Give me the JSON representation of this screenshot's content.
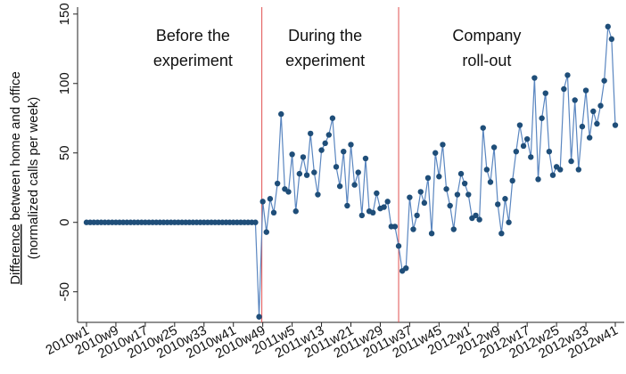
{
  "chart_data": {
    "type": "line",
    "y_label": {
      "underlined": "Difference",
      "rest": "between home and office",
      "line2": "(normalized calls per week)"
    },
    "annotations": [
      {
        "lines": [
          "Before the",
          "experiment"
        ],
        "index": 29
      },
      {
        "lines": [
          "During the",
          "experiment"
        ],
        "index": 65
      },
      {
        "lines": [
          "Company",
          "roll-out"
        ],
        "index": 109
      }
    ],
    "vlines": [
      47.75,
      85
    ],
    "vline_color": "#e05050",
    "categories": [
      "2010w1",
      null,
      null,
      null,
      null,
      null,
      null,
      null,
      "2010w9",
      null,
      null,
      null,
      null,
      null,
      null,
      null,
      "2010w17",
      null,
      null,
      null,
      null,
      null,
      null,
      null,
      "2010w25",
      null,
      null,
      null,
      null,
      null,
      null,
      null,
      "2010w33",
      null,
      null,
      null,
      null,
      null,
      null,
      null,
      "2010w41",
      null,
      null,
      null,
      null,
      null,
      null,
      null,
      "2010w49",
      null,
      null,
      null,
      null,
      null,
      null,
      null,
      "2011w5",
      null,
      null,
      null,
      null,
      null,
      null,
      null,
      "2011w13",
      null,
      null,
      null,
      null,
      null,
      null,
      null,
      "2011w21",
      null,
      null,
      null,
      null,
      null,
      null,
      null,
      "2011w29",
      null,
      null,
      null,
      null,
      null,
      null,
      null,
      "2011w37",
      null,
      null,
      null,
      null,
      null,
      null,
      null,
      "2011w45",
      null,
      null,
      null,
      null,
      null,
      null,
      null,
      "2012w1",
      null,
      null,
      null,
      null,
      null,
      null,
      null,
      "2012w9",
      null,
      null,
      null,
      null,
      null,
      null,
      null,
      "2012w17",
      null,
      null,
      null,
      null,
      null,
      null,
      null,
      "2012w25",
      null,
      null,
      null,
      null,
      null,
      null,
      null,
      "2012w33",
      null,
      null,
      null,
      null,
      null,
      null,
      null,
      "2012w41"
    ],
    "series": [
      {
        "color": "#5a86c0",
        "marker_color": "#1f4e79",
        "values": [
          0,
          0,
          0,
          0,
          0,
          0,
          0,
          0,
          0,
          0,
          0,
          0,
          0,
          0,
          0,
          0,
          0,
          0,
          0,
          0,
          0,
          0,
          0,
          0,
          0,
          0,
          0,
          0,
          0,
          0,
          0,
          0,
          0,
          0,
          0,
          0,
          0,
          0,
          0,
          0,
          0,
          0,
          0,
          0,
          0,
          0,
          0,
          -68,
          15,
          -7,
          17,
          7,
          28,
          78,
          24,
          22,
          49,
          8,
          35,
          47,
          34,
          64,
          36,
          20,
          52,
          57,
          63,
          75,
          40,
          26,
          51,
          12,
          56,
          27,
          36,
          5,
          46,
          8,
          7,
          21,
          10,
          11,
          15,
          -3,
          -3,
          -17,
          -35,
          -33,
          18,
          -5,
          5,
          22,
          14,
          32,
          -8,
          50,
          33,
          56,
          24,
          12,
          -5,
          20,
          35,
          28,
          20,
          3,
          5,
          2,
          68,
          38,
          29,
          54,
          13,
          -8,
          17,
          0,
          30,
          51,
          70,
          55,
          60,
          47,
          104,
          31,
          75,
          93,
          51,
          34,
          40,
          38,
          96,
          106,
          44,
          88,
          38,
          69,
          95,
          61,
          80,
          71,
          84,
          102,
          141,
          132,
          70
        ]
      }
    ],
    "ylim": [
      -72,
      155
    ],
    "yticks": [
      -50,
      0,
      50,
      100,
      150
    ]
  }
}
